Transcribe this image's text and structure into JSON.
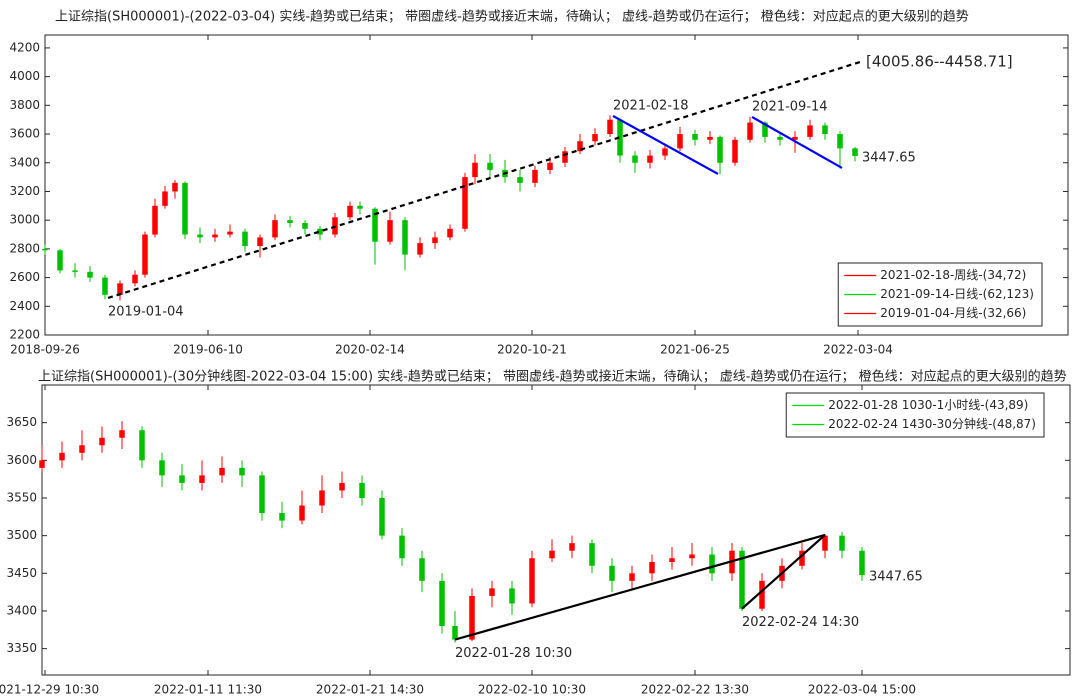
{
  "chart_data": [
    {
      "type": "candlestick",
      "title": "上证综指(SH000001)-(2022-03-04)  实线-趋势或已结束；  带圈虚线-趋势或接近末端，待确认；  虚线-趋势或仍在运行；  橙色线：对应起点的更大级别的趋势",
      "xlim": [
        0,
        1023
      ],
      "xticks": [
        {
          "value": 0,
          "label": "2018-09-26"
        },
        {
          "value": 163,
          "label": "2019-06-10"
        },
        {
          "value": 325,
          "label": "2020-02-14"
        },
        {
          "value": 487,
          "label": "2020-10-21"
        },
        {
          "value": 650,
          "label": "2021-06-25"
        },
        {
          "value": 813,
          "label": "2022-03-04"
        }
      ],
      "ylim": [
        2200,
        4290
      ],
      "yticks": [
        2200,
        2400,
        2600,
        2800,
        3000,
        3200,
        3400,
        3600,
        3800,
        4000,
        4200
      ],
      "up_color": "#ff0000",
      "down_color": "#00c000",
      "candles": [
        {
          "x": 0,
          "o": 2800,
          "h": 2830,
          "l": 2760,
          "c": 2790
        },
        {
          "x": 15,
          "o": 2790,
          "h": 2800,
          "l": 2630,
          "c": 2650
        },
        {
          "x": 30,
          "o": 2650,
          "h": 2700,
          "l": 2600,
          "c": 2640
        },
        {
          "x": 45,
          "o": 2640,
          "h": 2680,
          "l": 2570,
          "c": 2600
        },
        {
          "x": 60,
          "o": 2600,
          "h": 2620,
          "l": 2450,
          "c": 2480
        },
        {
          "x": 75,
          "o": 2480,
          "h": 2580,
          "l": 2440,
          "c": 2560
        },
        {
          "x": 90,
          "o": 2560,
          "h": 2650,
          "l": 2540,
          "c": 2620
        },
        {
          "x": 100,
          "o": 2620,
          "h": 2920,
          "l": 2600,
          "c": 2900
        },
        {
          "x": 110,
          "o": 2900,
          "h": 3150,
          "l": 2880,
          "c": 3100
        },
        {
          "x": 120,
          "o": 3100,
          "h": 3240,
          "l": 3080,
          "c": 3200
        },
        {
          "x": 130,
          "o": 3200,
          "h": 3280,
          "l": 3150,
          "c": 3260
        },
        {
          "x": 140,
          "o": 3260,
          "h": 3270,
          "l": 2870,
          "c": 2900
        },
        {
          "x": 155,
          "o": 2900,
          "h": 2950,
          "l": 2840,
          "c": 2880
        },
        {
          "x": 170,
          "o": 2880,
          "h": 2940,
          "l": 2850,
          "c": 2900
        },
        {
          "x": 185,
          "o": 2900,
          "h": 2970,
          "l": 2880,
          "c": 2920
        },
        {
          "x": 200,
          "o": 2920,
          "h": 2940,
          "l": 2780,
          "c": 2820
        },
        {
          "x": 215,
          "o": 2820,
          "h": 2900,
          "l": 2740,
          "c": 2880
        },
        {
          "x": 230,
          "o": 2880,
          "h": 3040,
          "l": 2860,
          "c": 3000
        },
        {
          "x": 245,
          "o": 3000,
          "h": 3030,
          "l": 2950,
          "c": 2980
        },
        {
          "x": 260,
          "o": 2980,
          "h": 3000,
          "l": 2900,
          "c": 2940
        },
        {
          "x": 275,
          "o": 2940,
          "h": 2960,
          "l": 2860,
          "c": 2900
        },
        {
          "x": 290,
          "o": 2900,
          "h": 3050,
          "l": 2880,
          "c": 3020
        },
        {
          "x": 305,
          "o": 3020,
          "h": 3130,
          "l": 3000,
          "c": 3100
        },
        {
          "x": 315,
          "o": 3100,
          "h": 3130,
          "l": 3040,
          "c": 3080
        },
        {
          "x": 330,
          "o": 3080,
          "h": 3090,
          "l": 2690,
          "c": 2850
        },
        {
          "x": 345,
          "o": 2850,
          "h": 3060,
          "l": 2830,
          "c": 3000
        },
        {
          "x": 360,
          "o": 3000,
          "h": 3020,
          "l": 2650,
          "c": 2760
        },
        {
          "x": 375,
          "o": 2760,
          "h": 2880,
          "l": 2740,
          "c": 2840
        },
        {
          "x": 390,
          "o": 2840,
          "h": 2920,
          "l": 2800,
          "c": 2880
        },
        {
          "x": 405,
          "o": 2880,
          "h": 2970,
          "l": 2860,
          "c": 2940
        },
        {
          "x": 420,
          "o": 2940,
          "h": 3330,
          "l": 2920,
          "c": 3300
        },
        {
          "x": 430,
          "o": 3300,
          "h": 3460,
          "l": 3250,
          "c": 3400
        },
        {
          "x": 445,
          "o": 3400,
          "h": 3460,
          "l": 3300,
          "c": 3350
        },
        {
          "x": 460,
          "o": 3350,
          "h": 3420,
          "l": 3260,
          "c": 3300
        },
        {
          "x": 475,
          "o": 3300,
          "h": 3350,
          "l": 3200,
          "c": 3260
        },
        {
          "x": 490,
          "o": 3260,
          "h": 3380,
          "l": 3230,
          "c": 3350
        },
        {
          "x": 505,
          "o": 3350,
          "h": 3440,
          "l": 3320,
          "c": 3400
        },
        {
          "x": 520,
          "o": 3400,
          "h": 3510,
          "l": 3370,
          "c": 3480
        },
        {
          "x": 535,
          "o": 3480,
          "h": 3600,
          "l": 3460,
          "c": 3550
        },
        {
          "x": 550,
          "o": 3550,
          "h": 3640,
          "l": 3520,
          "c": 3600
        },
        {
          "x": 565,
          "o": 3600,
          "h": 3730,
          "l": 3580,
          "c": 3700
        },
        {
          "x": 575,
          "o": 3700,
          "h": 3710,
          "l": 3400,
          "c": 3450
        },
        {
          "x": 590,
          "o": 3450,
          "h": 3480,
          "l": 3330,
          "c": 3400
        },
        {
          "x": 605,
          "o": 3400,
          "h": 3490,
          "l": 3360,
          "c": 3450
        },
        {
          "x": 620,
          "o": 3450,
          "h": 3530,
          "l": 3420,
          "c": 3500
        },
        {
          "x": 635,
          "o": 3500,
          "h": 3650,
          "l": 3480,
          "c": 3600
        },
        {
          "x": 650,
          "o": 3600,
          "h": 3630,
          "l": 3520,
          "c": 3560
        },
        {
          "x": 665,
          "o": 3560,
          "h": 3620,
          "l": 3530,
          "c": 3580
        },
        {
          "x": 675,
          "o": 3580,
          "h": 3590,
          "l": 3320,
          "c": 3400
        },
        {
          "x": 690,
          "o": 3400,
          "h": 3580,
          "l": 3380,
          "c": 3560
        },
        {
          "x": 705,
          "o": 3560,
          "h": 3720,
          "l": 3540,
          "c": 3680
        },
        {
          "x": 720,
          "o": 3680,
          "h": 3690,
          "l": 3540,
          "c": 3580
        },
        {
          "x": 735,
          "o": 3580,
          "h": 3610,
          "l": 3520,
          "c": 3560
        },
        {
          "x": 750,
          "o": 3560,
          "h": 3620,
          "l": 3470,
          "c": 3580
        },
        {
          "x": 765,
          "o": 3580,
          "h": 3700,
          "l": 3560,
          "c": 3660
        },
        {
          "x": 780,
          "o": 3660,
          "h": 3680,
          "l": 3560,
          "c": 3600
        },
        {
          "x": 795,
          "o": 3600,
          "h": 3620,
          "l": 3360,
          "c": 3500
        },
        {
          "x": 810,
          "o": 3500,
          "h": 3510,
          "l": 3410,
          "c": 3447.65
        }
      ],
      "lines": [
        {
          "x": [
            63,
            815
          ],
          "values": [
            2458,
            4102
          ],
          "color": "#000000",
          "style": "dashed",
          "start_label": "2019-01-04",
          "end_label": "[4005.86--4458.71]"
        },
        {
          "x": [
            568,
            673
          ],
          "values": [
            3726,
            3322
          ],
          "color": "#0000ff",
          "style": "solid",
          "start_label": "2021-02-18"
        },
        {
          "x": [
            707,
            797
          ],
          "values": [
            3719,
            3364
          ],
          "color": "#0000ff",
          "style": "solid",
          "start_label": "2021-09-14"
        }
      ],
      "last_value": 3447.65,
      "legend_position": "lower right",
      "legend": [
        {
          "name": "2021-02-18-周线-(34,72)",
          "color": "#ff0000"
        },
        {
          "name": "2021-09-14-日线-(62,123)",
          "color": "#00e000"
        },
        {
          "name": "2019-01-04-月线-(32,66)",
          "color": "#ff0000"
        }
      ]
    },
    {
      "type": "candlestick",
      "title": "上证综指(SH000001)-(30分钟线图-2022-03-04 15:00)  实线-趋势或已结束；  带圈虚线-趋势或接近末端，待确认；  虚线-趋势或仍在运行；  橙色线：对应起点的更大级别的趋势",
      "xlim": [
        0,
        1028
      ],
      "xticks": [
        {
          "value": 3,
          "label": "2021-12-29 10:30"
        },
        {
          "value": 166,
          "label": "2022-01-11 11:30"
        },
        {
          "value": 328,
          "label": "2022-01-21 14:30"
        },
        {
          "value": 490,
          "label": "2022-02-10 10:30"
        },
        {
          "value": 653,
          "label": "2022-02-22 13:30"
        },
        {
          "value": 820,
          "label": "2022-03-04 15:00"
        }
      ],
      "ylim": [
        3315,
        3700
      ],
      "yticks": [
        3350,
        3400,
        3450,
        3500,
        3550,
        3600,
        3650
      ],
      "up_color": "#ff0000",
      "down_color": "#00c000",
      "candles": [
        {
          "x": 0,
          "o": 3590,
          "h": 3620,
          "l": 3585,
          "c": 3600
        },
        {
          "x": 20,
          "o": 3600,
          "h": 3625,
          "l": 3590,
          "c": 3610
        },
        {
          "x": 40,
          "o": 3610,
          "h": 3640,
          "l": 3600,
          "c": 3620
        },
        {
          "x": 60,
          "o": 3620,
          "h": 3645,
          "l": 3610,
          "c": 3630
        },
        {
          "x": 80,
          "o": 3630,
          "h": 3652,
          "l": 3615,
          "c": 3640
        },
        {
          "x": 100,
          "o": 3640,
          "h": 3645,
          "l": 3590,
          "c": 3600
        },
        {
          "x": 120,
          "o": 3600,
          "h": 3610,
          "l": 3565,
          "c": 3580
        },
        {
          "x": 140,
          "o": 3580,
          "h": 3595,
          "l": 3560,
          "c": 3570
        },
        {
          "x": 160,
          "o": 3570,
          "h": 3600,
          "l": 3560,
          "c": 3580
        },
        {
          "x": 180,
          "o": 3580,
          "h": 3605,
          "l": 3570,
          "c": 3590
        },
        {
          "x": 200,
          "o": 3590,
          "h": 3600,
          "l": 3565,
          "c": 3580
        },
        {
          "x": 220,
          "o": 3580,
          "h": 3585,
          "l": 3520,
          "c": 3530
        },
        {
          "x": 240,
          "o": 3530,
          "h": 3545,
          "l": 3510,
          "c": 3520
        },
        {
          "x": 260,
          "o": 3520,
          "h": 3560,
          "l": 3515,
          "c": 3540
        },
        {
          "x": 280,
          "o": 3540,
          "h": 3580,
          "l": 3530,
          "c": 3560
        },
        {
          "x": 300,
          "o": 3560,
          "h": 3585,
          "l": 3550,
          "c": 3570
        },
        {
          "x": 320,
          "o": 3570,
          "h": 3580,
          "l": 3540,
          "c": 3550
        },
        {
          "x": 340,
          "o": 3550,
          "h": 3560,
          "l": 3495,
          "c": 3500
        },
        {
          "x": 360,
          "o": 3500,
          "h": 3510,
          "l": 3460,
          "c": 3470
        },
        {
          "x": 380,
          "o": 3470,
          "h": 3480,
          "l": 3425,
          "c": 3440
        },
        {
          "x": 400,
          "o": 3440,
          "h": 3450,
          "l": 3370,
          "c": 3380
        },
        {
          "x": 413,
          "o": 3380,
          "h": 3400,
          "l": 3358,
          "c": 3362
        },
        {
          "x": 430,
          "o": 3362,
          "h": 3430,
          "l": 3360,
          "c": 3420
        },
        {
          "x": 450,
          "o": 3420,
          "h": 3440,
          "l": 3405,
          "c": 3430
        },
        {
          "x": 470,
          "o": 3430,
          "h": 3440,
          "l": 3395,
          "c": 3410
        },
        {
          "x": 490,
          "o": 3410,
          "h": 3480,
          "l": 3405,
          "c": 3470
        },
        {
          "x": 510,
          "o": 3470,
          "h": 3495,
          "l": 3465,
          "c": 3480
        },
        {
          "x": 530,
          "o": 3480,
          "h": 3500,
          "l": 3470,
          "c": 3490
        },
        {
          "x": 550,
          "o": 3490,
          "h": 3495,
          "l": 3450,
          "c": 3460
        },
        {
          "x": 570,
          "o": 3460,
          "h": 3470,
          "l": 3425,
          "c": 3440
        },
        {
          "x": 590,
          "o": 3440,
          "h": 3460,
          "l": 3430,
          "c": 3450
        },
        {
          "x": 610,
          "o": 3450,
          "h": 3475,
          "l": 3440,
          "c": 3465
        },
        {
          "x": 630,
          "o": 3465,
          "h": 3485,
          "l": 3455,
          "c": 3470
        },
        {
          "x": 650,
          "o": 3470,
          "h": 3490,
          "l": 3460,
          "c": 3475
        },
        {
          "x": 670,
          "o": 3475,
          "h": 3485,
          "l": 3440,
          "c": 3450
        },
        {
          "x": 690,
          "o": 3450,
          "h": 3490,
          "l": 3440,
          "c": 3480
        },
        {
          "x": 700,
          "o": 3480,
          "h": 3485,
          "l": 3400,
          "c": 3403
        },
        {
          "x": 720,
          "o": 3403,
          "h": 3450,
          "l": 3400,
          "c": 3440
        },
        {
          "x": 740,
          "o": 3440,
          "h": 3470,
          "l": 3430,
          "c": 3460
        },
        {
          "x": 760,
          "o": 3460,
          "h": 3490,
          "l": 3455,
          "c": 3480
        },
        {
          "x": 783,
          "o": 3480,
          "h": 3502,
          "l": 3470,
          "c": 3500
        },
        {
          "x": 800,
          "o": 3500,
          "h": 3505,
          "l": 3470,
          "c": 3480
        },
        {
          "x": 820,
          "o": 3480,
          "h": 3485,
          "l": 3440,
          "c": 3447.65
        }
      ],
      "lines": [
        {
          "x": [
            413,
            783
          ],
          "values": [
            3362,
            3501
          ],
          "color": "#000000",
          "style": "solid",
          "start_label": "2022-01-28 10:30"
        },
        {
          "x": [
            700,
            783
          ],
          "values": [
            3403,
            3501
          ],
          "color": "#000000",
          "style": "solid",
          "start_label": "2022-02-24 14:30"
        }
      ],
      "last_value": 3447.65,
      "legend_position": "upper right",
      "legend": [
        {
          "name": "2022-01-28 1030-1小时线-(43,89)",
          "color": "#00e000"
        },
        {
          "name": "2022-02-24 1430-30分钟线-(48,87)",
          "color": "#00e000"
        }
      ]
    }
  ]
}
